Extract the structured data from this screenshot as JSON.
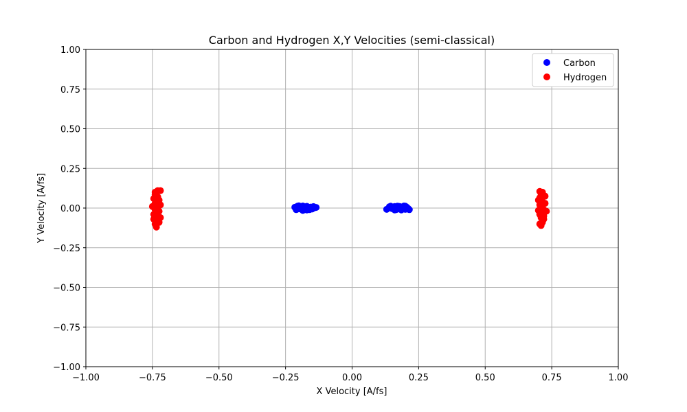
{
  "chart_data": {
    "type": "scatter",
    "title": "Carbon and Hydrogen X,Y Velocities (semi-classical)",
    "xlabel": "X Velocity [A/fs]",
    "ylabel": "Y Velocity [A/fs]",
    "xlim": [
      -1.0,
      1.0
    ],
    "ylim": [
      -1.0,
      1.0
    ],
    "xticks": [
      "−1.00",
      "−0.75",
      "−0.50",
      "−0.25",
      "0.00",
      "0.25",
      "0.50",
      "0.75",
      "1.00"
    ],
    "yticks": [
      "−1.00",
      "−0.75",
      "−0.50",
      "−0.25",
      "0.00",
      "0.25",
      "0.50",
      "0.75",
      "1.00"
    ],
    "grid": true,
    "legend_position": "top-right",
    "series": [
      {
        "name": "Carbon",
        "color": "#0000ff",
        "points": [
          [
            -0.215,
            0.005
          ],
          [
            -0.21,
            -0.01
          ],
          [
            -0.205,
            0.012
          ],
          [
            -0.2,
            -0.005
          ],
          [
            -0.195,
            0.01
          ],
          [
            -0.19,
            0.0
          ],
          [
            -0.185,
            -0.015
          ],
          [
            -0.18,
            0.008
          ],
          [
            -0.175,
            -0.004
          ],
          [
            -0.17,
            0.011
          ],
          [
            -0.165,
            0.0
          ],
          [
            -0.16,
            -0.01
          ],
          [
            -0.155,
            0.006
          ],
          [
            -0.15,
            -0.006
          ],
          [
            -0.145,
            0.009
          ],
          [
            -0.14,
            0.002
          ],
          [
            -0.135,
            0.004
          ],
          [
            -0.2,
            0.014
          ],
          [
            -0.185,
            0.013
          ],
          [
            -0.17,
            -0.012
          ],
          [
            0.13,
            -0.008
          ],
          [
            0.14,
            0.008
          ],
          [
            0.145,
            0.012
          ],
          [
            0.15,
            -0.003
          ],
          [
            0.155,
            0.0
          ],
          [
            0.16,
            0.01
          ],
          [
            0.165,
            -0.01
          ],
          [
            0.17,
            0.012
          ],
          [
            0.175,
            -0.005
          ],
          [
            0.18,
            0.009
          ],
          [
            0.185,
            -0.012
          ],
          [
            0.19,
            0.004
          ],
          [
            0.195,
            0.013
          ],
          [
            0.2,
            -0.008
          ],
          [
            0.205,
            0.006
          ],
          [
            0.21,
            -0.002
          ],
          [
            0.215,
            -0.01
          ],
          [
            0.2,
            0.012
          ],
          [
            0.175,
            0.011
          ],
          [
            0.16,
            -0.012
          ]
        ]
      },
      {
        "name": "Hydrogen",
        "color": "#ff0000",
        "points": [
          [
            -0.745,
            0.06
          ],
          [
            -0.74,
            0.1
          ],
          [
            -0.735,
            0.09
          ],
          [
            -0.73,
            0.11
          ],
          [
            -0.72,
            0.11
          ],
          [
            -0.725,
            0.05
          ],
          [
            -0.74,
            0.03
          ],
          [
            -0.75,
            0.01
          ],
          [
            -0.73,
            0.0
          ],
          [
            -0.74,
            -0.01
          ],
          [
            -0.725,
            -0.02
          ],
          [
            -0.745,
            -0.04
          ],
          [
            -0.735,
            -0.05
          ],
          [
            -0.72,
            -0.06
          ],
          [
            -0.73,
            -0.08
          ],
          [
            -0.74,
            -0.1
          ],
          [
            -0.735,
            -0.12
          ],
          [
            -0.725,
            -0.09
          ],
          [
            -0.73,
            0.07
          ],
          [
            -0.74,
            0.085
          ],
          [
            -0.73,
            0.035
          ],
          [
            -0.745,
            -0.07
          ],
          [
            -0.72,
            0.02
          ],
          [
            -0.73,
            -0.03
          ],
          [
            -0.735,
            0.04
          ],
          [
            0.705,
            0.105
          ],
          [
            0.715,
            0.1
          ],
          [
            0.72,
            0.08
          ],
          [
            0.71,
            0.06
          ],
          [
            0.7,
            0.05
          ],
          [
            0.715,
            0.04
          ],
          [
            0.725,
            0.03
          ],
          [
            0.705,
            0.02
          ],
          [
            0.71,
            0.0
          ],
          [
            0.72,
            -0.01
          ],
          [
            0.73,
            -0.02
          ],
          [
            0.715,
            -0.03
          ],
          [
            0.705,
            -0.04
          ],
          [
            0.72,
            -0.05
          ],
          [
            0.71,
            -0.06
          ],
          [
            0.715,
            -0.08
          ],
          [
            0.705,
            -0.1
          ],
          [
            0.71,
            -0.11
          ],
          [
            0.725,
            0.075
          ],
          [
            0.715,
            0.015
          ],
          [
            0.7,
            -0.015
          ],
          [
            0.72,
            -0.07
          ],
          [
            0.71,
            0.09
          ],
          [
            0.715,
            -0.09
          ],
          [
            0.705,
            0.065
          ]
        ]
      }
    ]
  }
}
